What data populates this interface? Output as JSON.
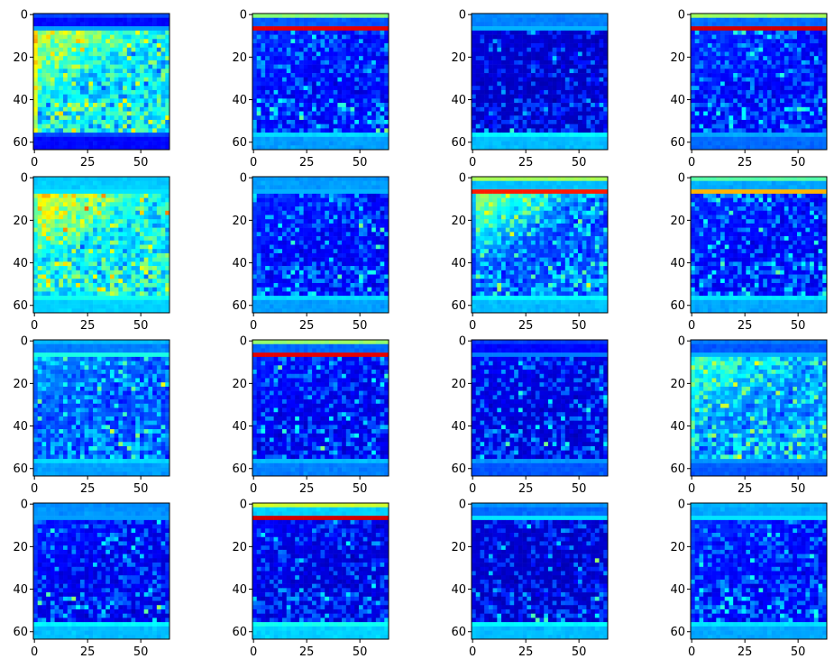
{
  "chart_data": [
    {
      "type": "heatmap",
      "ylim": [
        63.5,
        -0.5
      ],
      "xlim": [
        -0.5,
        63.5
      ],
      "x_ticks": [
        0,
        25,
        50
      ],
      "y_ticks": [
        0,
        20,
        40,
        60
      ],
      "colormap": "jet",
      "title": "",
      "xlabel": "",
      "ylabel": ""
    },
    {
      "type": "heatmap",
      "ylim": [
        63.5,
        -0.5
      ],
      "xlim": [
        -0.5,
        63.5
      ],
      "x_ticks": [
        0,
        25,
        50
      ],
      "y_ticks": [
        0,
        20,
        40,
        60
      ],
      "colormap": "jet",
      "title": "",
      "xlabel": "",
      "ylabel": ""
    },
    {
      "type": "heatmap",
      "ylim": [
        63.5,
        -0.5
      ],
      "xlim": [
        -0.5,
        63.5
      ],
      "x_ticks": [
        0,
        25,
        50
      ],
      "y_ticks": [
        0,
        20,
        40,
        60
      ],
      "colormap": "jet",
      "title": "",
      "xlabel": "",
      "ylabel": ""
    },
    {
      "type": "heatmap",
      "ylim": [
        63.5,
        -0.5
      ],
      "xlim": [
        -0.5,
        63.5
      ],
      "x_ticks": [
        0,
        25,
        50
      ],
      "y_ticks": [
        0,
        20,
        40,
        60
      ],
      "colormap": "jet",
      "title": "",
      "xlabel": "",
      "ylabel": ""
    },
    {
      "type": "heatmap",
      "ylim": [
        63.5,
        -0.5
      ],
      "xlim": [
        -0.5,
        63.5
      ],
      "x_ticks": [
        0,
        25,
        50
      ],
      "y_ticks": [
        0,
        20,
        40,
        60
      ],
      "colormap": "jet",
      "title": "",
      "xlabel": "",
      "ylabel": ""
    },
    {
      "type": "heatmap",
      "ylim": [
        63.5,
        -0.5
      ],
      "xlim": [
        -0.5,
        63.5
      ],
      "x_ticks": [
        0,
        25,
        50
      ],
      "y_ticks": [
        0,
        20,
        40,
        60
      ],
      "colormap": "jet",
      "title": "",
      "xlabel": "",
      "ylabel": ""
    },
    {
      "type": "heatmap",
      "ylim": [
        63.5,
        -0.5
      ],
      "xlim": [
        -0.5,
        63.5
      ],
      "x_ticks": [
        0,
        25,
        50
      ],
      "y_ticks": [
        0,
        20,
        40,
        60
      ],
      "colormap": "jet",
      "title": "",
      "xlabel": "",
      "ylabel": ""
    },
    {
      "type": "heatmap",
      "ylim": [
        63.5,
        -0.5
      ],
      "xlim": [
        -0.5,
        63.5
      ],
      "x_ticks": [
        0,
        25,
        50
      ],
      "y_ticks": [
        0,
        20,
        40,
        60
      ],
      "colormap": "jet",
      "title": "",
      "xlabel": "",
      "ylabel": ""
    },
    {
      "type": "heatmap",
      "ylim": [
        63.5,
        -0.5
      ],
      "xlim": [
        -0.5,
        63.5
      ],
      "x_ticks": [
        0,
        25,
        50
      ],
      "y_ticks": [
        0,
        20,
        40,
        60
      ],
      "colormap": "jet",
      "title": "",
      "xlabel": "",
      "ylabel": ""
    },
    {
      "type": "heatmap",
      "ylim": [
        63.5,
        -0.5
      ],
      "xlim": [
        -0.5,
        63.5
      ],
      "x_ticks": [
        0,
        25,
        50
      ],
      "y_ticks": [
        0,
        20,
        40,
        60
      ],
      "colormap": "jet",
      "title": "",
      "xlabel": "",
      "ylabel": ""
    },
    {
      "type": "heatmap",
      "ylim": [
        63.5,
        -0.5
      ],
      "xlim": [
        -0.5,
        63.5
      ],
      "x_ticks": [
        0,
        25,
        50
      ],
      "y_ticks": [
        0,
        20,
        40,
        60
      ],
      "colormap": "jet",
      "title": "",
      "xlabel": "",
      "ylabel": ""
    },
    {
      "type": "heatmap",
      "ylim": [
        63.5,
        -0.5
      ],
      "xlim": [
        -0.5,
        63.5
      ],
      "x_ticks": [
        0,
        25,
        50
      ],
      "y_ticks": [
        0,
        20,
        40,
        60
      ],
      "colormap": "jet",
      "title": "",
      "xlabel": "",
      "ylabel": ""
    },
    {
      "type": "heatmap",
      "ylim": [
        63.5,
        -0.5
      ],
      "xlim": [
        -0.5,
        63.5
      ],
      "x_ticks": [
        0,
        25,
        50
      ],
      "y_ticks": [
        0,
        20,
        40,
        60
      ],
      "colormap": "jet",
      "title": "",
      "xlabel": "",
      "ylabel": ""
    },
    {
      "type": "heatmap",
      "ylim": [
        63.5,
        -0.5
      ],
      "xlim": [
        -0.5,
        63.5
      ],
      "x_ticks": [
        0,
        25,
        50
      ],
      "y_ticks": [
        0,
        20,
        40,
        60
      ],
      "colormap": "jet",
      "title": "",
      "xlabel": "",
      "ylabel": ""
    },
    {
      "type": "heatmap",
      "ylim": [
        63.5,
        -0.5
      ],
      "xlim": [
        -0.5,
        63.5
      ],
      "x_ticks": [
        0,
        25,
        50
      ],
      "y_ticks": [
        0,
        20,
        40,
        60
      ],
      "colormap": "jet",
      "title": "",
      "xlabel": "",
      "ylabel": ""
    },
    {
      "type": "heatmap",
      "ylim": [
        63.5,
        -0.5
      ],
      "xlim": [
        -0.5,
        63.5
      ],
      "x_ticks": [
        0,
        25,
        50
      ],
      "y_ticks": [
        0,
        20,
        40,
        60
      ],
      "colormap": "jet",
      "title": "",
      "xlabel": "",
      "ylabel": ""
    }
  ],
  "colors": {
    "background": "#ffffff",
    "axis": "#000000",
    "colormap_stops": [
      "#00007f",
      "#0000ff",
      "#007fff",
      "#00ffff",
      "#7fff7f",
      "#ffff00",
      "#ff7f00",
      "#ff0000",
      "#7f0000"
    ]
  }
}
